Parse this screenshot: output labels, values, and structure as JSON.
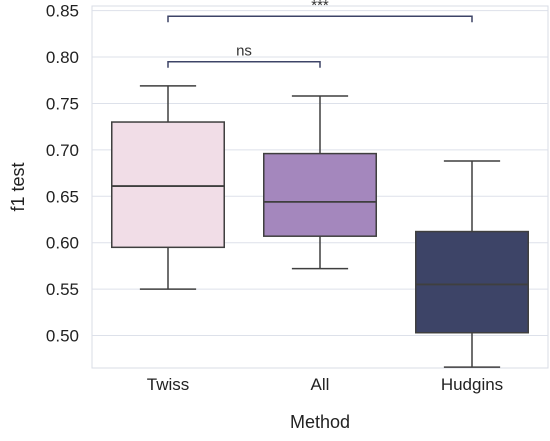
{
  "chart_data": {
    "type": "box",
    "xlabel": "Method",
    "ylabel": "f1 test",
    "ylim": [
      0.465,
      0.855
    ],
    "yticks": [
      "0.50",
      "0.55",
      "0.60",
      "0.65",
      "0.70",
      "0.75",
      "0.80",
      "0.85"
    ],
    "grid": true,
    "categories": [
      "Twiss",
      "All",
      "Hudgins"
    ],
    "boxes": [
      {
        "category": "Twiss",
        "whisker_low": 0.55,
        "q1": 0.595,
        "median": 0.661,
        "q3": 0.73,
        "whisker_high": 0.769,
        "color": "#f1dde7"
      },
      {
        "category": "All",
        "whisker_low": 0.572,
        "q1": 0.607,
        "median": 0.644,
        "q3": 0.696,
        "whisker_high": 0.758,
        "color": "#a487bd"
      },
      {
        "category": "Hudgins",
        "whisker_low": 0.466,
        "q1": 0.503,
        "median": 0.555,
        "q3": 0.612,
        "whisker_high": 0.688,
        "color": "#3d4467"
      }
    ],
    "annotations": [
      {
        "from": "Twiss",
        "to": "All",
        "text": "ns",
        "y": 0.795
      },
      {
        "from": "Twiss",
        "to": "Hudgins",
        "text": "***",
        "y": 0.844
      }
    ]
  }
}
